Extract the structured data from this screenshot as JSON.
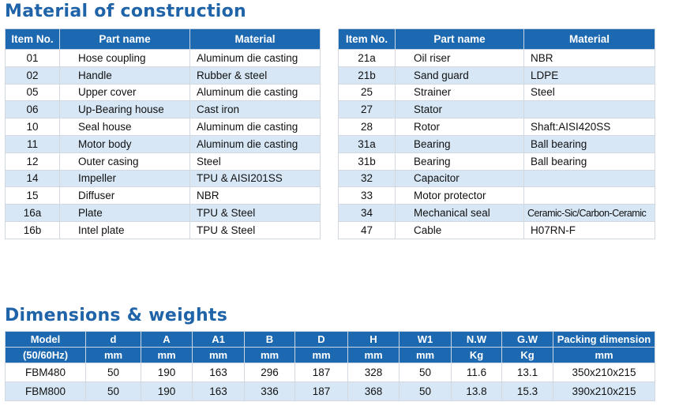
{
  "materials": {
    "title": "Material of construction",
    "headers": {
      "item": "Item No.",
      "part": "Part name",
      "material": "Material"
    },
    "left_rows": [
      {
        "item": "01",
        "part": "Hose coupling",
        "material": "Aluminum die casting"
      },
      {
        "item": "02",
        "part": "Handle",
        "material": "Rubber & steel"
      },
      {
        "item": "05",
        "part": "Upper cover",
        "material": "Aluminum die casting"
      },
      {
        "item": "06",
        "part": "Up-Bearing house",
        "material": "Cast iron"
      },
      {
        "item": "10",
        "part": "Seal house",
        "material": "Aluminum die casting"
      },
      {
        "item": "11",
        "part": "Motor body",
        "material": "Aluminum die casting"
      },
      {
        "item": "12",
        "part": "Outer casing",
        "material": "Steel"
      },
      {
        "item": "14",
        "part": "Impeller",
        "material": "TPU & AISI201SS"
      },
      {
        "item": "15",
        "part": "Diffuser",
        "material": "NBR"
      },
      {
        "item": "16a",
        "part": "Plate",
        "material": "TPU & Steel"
      },
      {
        "item": "16b",
        "part": "Intel plate",
        "material": "TPU & Steel"
      }
    ],
    "right_rows": [
      {
        "item": "21a",
        "part": "Oil riser",
        "material": "NBR"
      },
      {
        "item": "21b",
        "part": "Sand guard",
        "material": "LDPE"
      },
      {
        "item": "25",
        "part": "Strainer",
        "material": "Steel"
      },
      {
        "item": "27",
        "part": "Stator",
        "material": ""
      },
      {
        "item": "28",
        "part": "Rotor",
        "material": "Shaft:AISI420SS"
      },
      {
        "item": "31a",
        "part": "Bearing",
        "material": "Ball bearing"
      },
      {
        "item": "31b",
        "part": "Bearing",
        "material": "Ball bearing"
      },
      {
        "item": "32",
        "part": "Capacitor",
        "material": ""
      },
      {
        "item": "33",
        "part": "Motor protector",
        "material": ""
      },
      {
        "item": "34",
        "part": "Mechanical seal",
        "material": "Ceramic-Sic/Carbon-Ceramic"
      },
      {
        "item": "47",
        "part": "Cable",
        "material": "H07RN-F"
      }
    ]
  },
  "dimensions": {
    "title": "Dimensions & weights",
    "headers": [
      {
        "top": "Model",
        "bottom": "(50/60Hz)"
      },
      {
        "top": "d",
        "bottom": "mm"
      },
      {
        "top": "A",
        "bottom": "mm"
      },
      {
        "top": "A1",
        "bottom": "mm"
      },
      {
        "top": "B",
        "bottom": "mm"
      },
      {
        "top": "D",
        "bottom": "mm"
      },
      {
        "top": "H",
        "bottom": "mm"
      },
      {
        "top": "W1",
        "bottom": "mm"
      },
      {
        "top": "N.W",
        "bottom": "Kg"
      },
      {
        "top": "G.W",
        "bottom": "Kg"
      },
      {
        "top": "Packing dimension",
        "bottom": "mm"
      }
    ],
    "rows": [
      [
        "FBM480",
        "50",
        "190",
        "163",
        "296",
        "187",
        "328",
        "50",
        "11.6",
        "13.1",
        "350x210x215"
      ],
      [
        "FBM800",
        "50",
        "190",
        "163",
        "336",
        "187",
        "368",
        "50",
        "13.8",
        "15.3",
        "390x210x215"
      ]
    ]
  }
}
